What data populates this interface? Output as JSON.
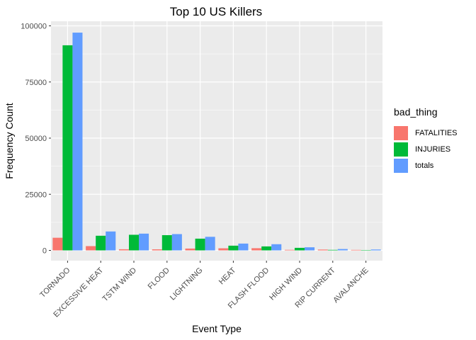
{
  "chart_data": {
    "type": "bar",
    "title": "Top 10 US Killers",
    "xlabel": "Event Type",
    "ylabel": "Frequency Count",
    "categories": [
      "TORNADO",
      "EXCESSIVE HEAT",
      "TSTM WIND",
      "FLOOD",
      "LIGHTNING",
      "HEAT",
      "FLASH FLOOD",
      "HIGH WIND",
      "RIP CURRENT",
      "AVALANCHE"
    ],
    "series": [
      {
        "name": "FATALITIES",
        "color": "#F8766D",
        "values": [
          5633,
          1903,
          504,
          470,
          816,
          937,
          978,
          248,
          368,
          224
        ]
      },
      {
        "name": "INJURIES",
        "color": "#00BA38",
        "values": [
          91346,
          6525,
          6957,
          6789,
          5230,
          2100,
          1777,
          1137,
          232,
          170
        ]
      },
      {
        "name": "totals",
        "color": "#619CFF",
        "values": [
          96979,
          8428,
          7461,
          7259,
          6046,
          3037,
          2755,
          1385,
          600,
          394
        ]
      }
    ],
    "ylim": [
      0,
      100000
    ],
    "yticks": [
      0,
      25000,
      50000,
      75000,
      100000
    ],
    "grid": true,
    "legend": {
      "title": "bad_thing",
      "position": "right"
    }
  }
}
